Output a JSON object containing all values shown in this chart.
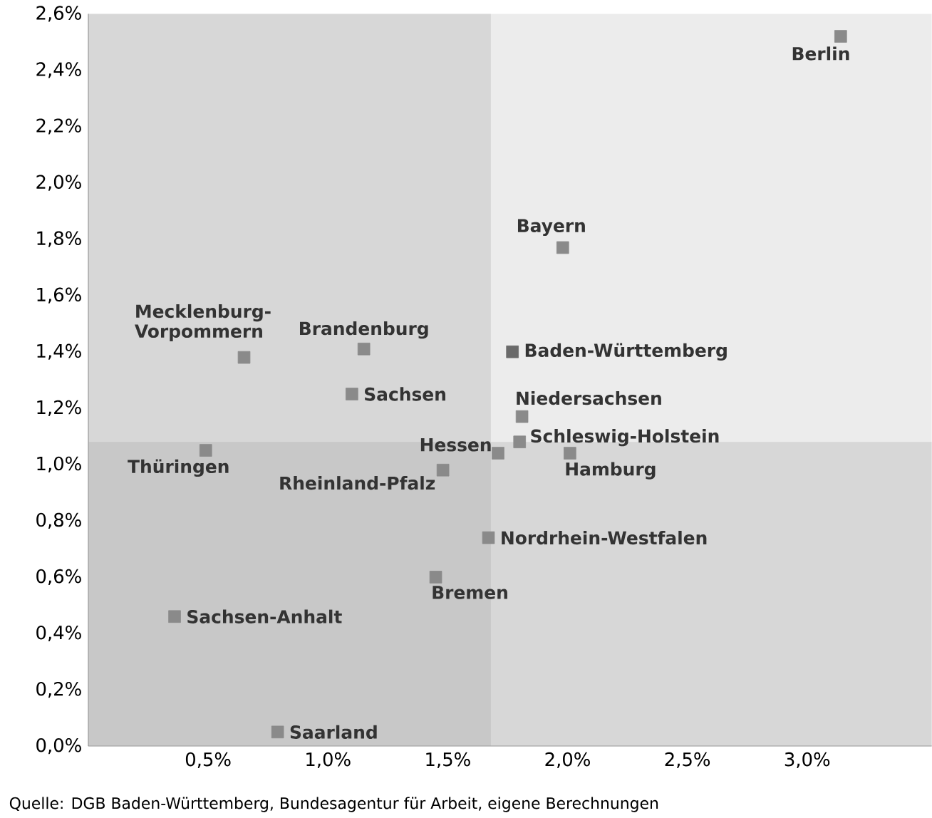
{
  "chart_data": {
    "type": "scatter",
    "marker": "square",
    "series": [
      {
        "color": "#8a8a8a",
        "x": [
          3.14,
          1.98,
          1.15,
          0.65,
          1.1,
          1.81,
          1.8,
          1.71,
          2.01,
          0.49,
          1.48,
          1.67,
          1.45,
          0.36,
          0.79
        ],
        "values": [
          2.52,
          1.77,
          1.41,
          1.38,
          1.25,
          1.17,
          1.08,
          1.04,
          1.04,
          1.05,
          0.98,
          0.74,
          0.6,
          0.46,
          0.05
        ]
      },
      {
        "color": "#6a6a6a",
        "x": [
          1.77
        ],
        "values": [
          1.4
        ]
      }
    ],
    "xlim": [
      0,
      3.52
    ],
    "ylim": [
      0,
      2.6
    ],
    "xticks": [
      {
        "value": 0.5,
        "label": "0,5%"
      },
      {
        "value": 1.0,
        "label": "1,0%"
      },
      {
        "value": 1.5,
        "label": "1,5%"
      },
      {
        "value": 2.0,
        "label": "2,0%"
      },
      {
        "value": 2.5,
        "label": "2,5%"
      },
      {
        "value": 3.0,
        "label": "3,0%"
      }
    ],
    "yticks": [
      {
        "value": 0,
        "label": "0,0%"
      },
      {
        "value": 0.2,
        "label": "0,2%"
      },
      {
        "value": 0.4,
        "label": "0,4%"
      },
      {
        "value": 0.6,
        "label": "0,6%"
      },
      {
        "value": 0.8,
        "label": "0,8%"
      },
      {
        "value": 1.0,
        "label": "1,0%"
      },
      {
        "value": 1.2,
        "label": "1,2%"
      },
      {
        "value": 1.4,
        "label": "1,4%"
      },
      {
        "value": 1.6,
        "label": "1,6%"
      },
      {
        "value": 1.8,
        "label": "1,8%"
      },
      {
        "value": 2.0,
        "label": "2,0%"
      },
      {
        "value": 2.2,
        "label": "2,2%"
      },
      {
        "value": 2.4,
        "label": "2,4%"
      },
      {
        "value": 2.6,
        "label": "2,6%"
      }
    ],
    "bands": [
      {
        "axis": "x",
        "from": 0,
        "to": 1.68,
        "color": "#a0a0a0"
      },
      {
        "axis": "y",
        "from": 0,
        "to": 1.08,
        "color": "#a0a0a0"
      }
    ],
    "annotations": [
      {
        "text": "Berlin",
        "x": 3.14,
        "y": 2.52
      },
      {
        "text": "Bayern",
        "x": 1.98,
        "y": 1.77
      },
      {
        "text": "Baden-Württemberg",
        "x": 1.77,
        "y": 1.4
      },
      {
        "text": "Brandenburg",
        "x": 1.15,
        "y": 1.41
      },
      {
        "text": "Mecklenburg-Vorpommern",
        "x": 0.65,
        "y": 1.38
      },
      {
        "text": "Sachsen",
        "x": 1.1,
        "y": 1.25
      },
      {
        "text": "Niedersachsen",
        "x": 1.81,
        "y": 1.17
      },
      {
        "text": "Schleswig-Holstein",
        "x": 1.8,
        "y": 1.08
      },
      {
        "text": "Hessen",
        "x": 1.71,
        "y": 1.04
      },
      {
        "text": "Hamburg",
        "x": 2.01,
        "y": 1.04
      },
      {
        "text": "Thüringen",
        "x": 0.49,
        "y": 1.05
      },
      {
        "text": "Rheinland-Pfalz",
        "x": 1.48,
        "y": 0.98
      },
      {
        "text": "Nordrhein-Westfalen",
        "x": 1.67,
        "y": 0.74
      },
      {
        "text": "Bremen",
        "x": 1.45,
        "y": 0.6
      },
      {
        "text": "Sachsen-Anhalt",
        "x": 0.36,
        "y": 0.46
      },
      {
        "text": "Saarland",
        "x": 0.79,
        "y": 0.05
      },
      "Quelle: DGB Baden-Württemberg, Bundesagentur für Arbeit, eigene Berechnungen"
    ]
  }
}
